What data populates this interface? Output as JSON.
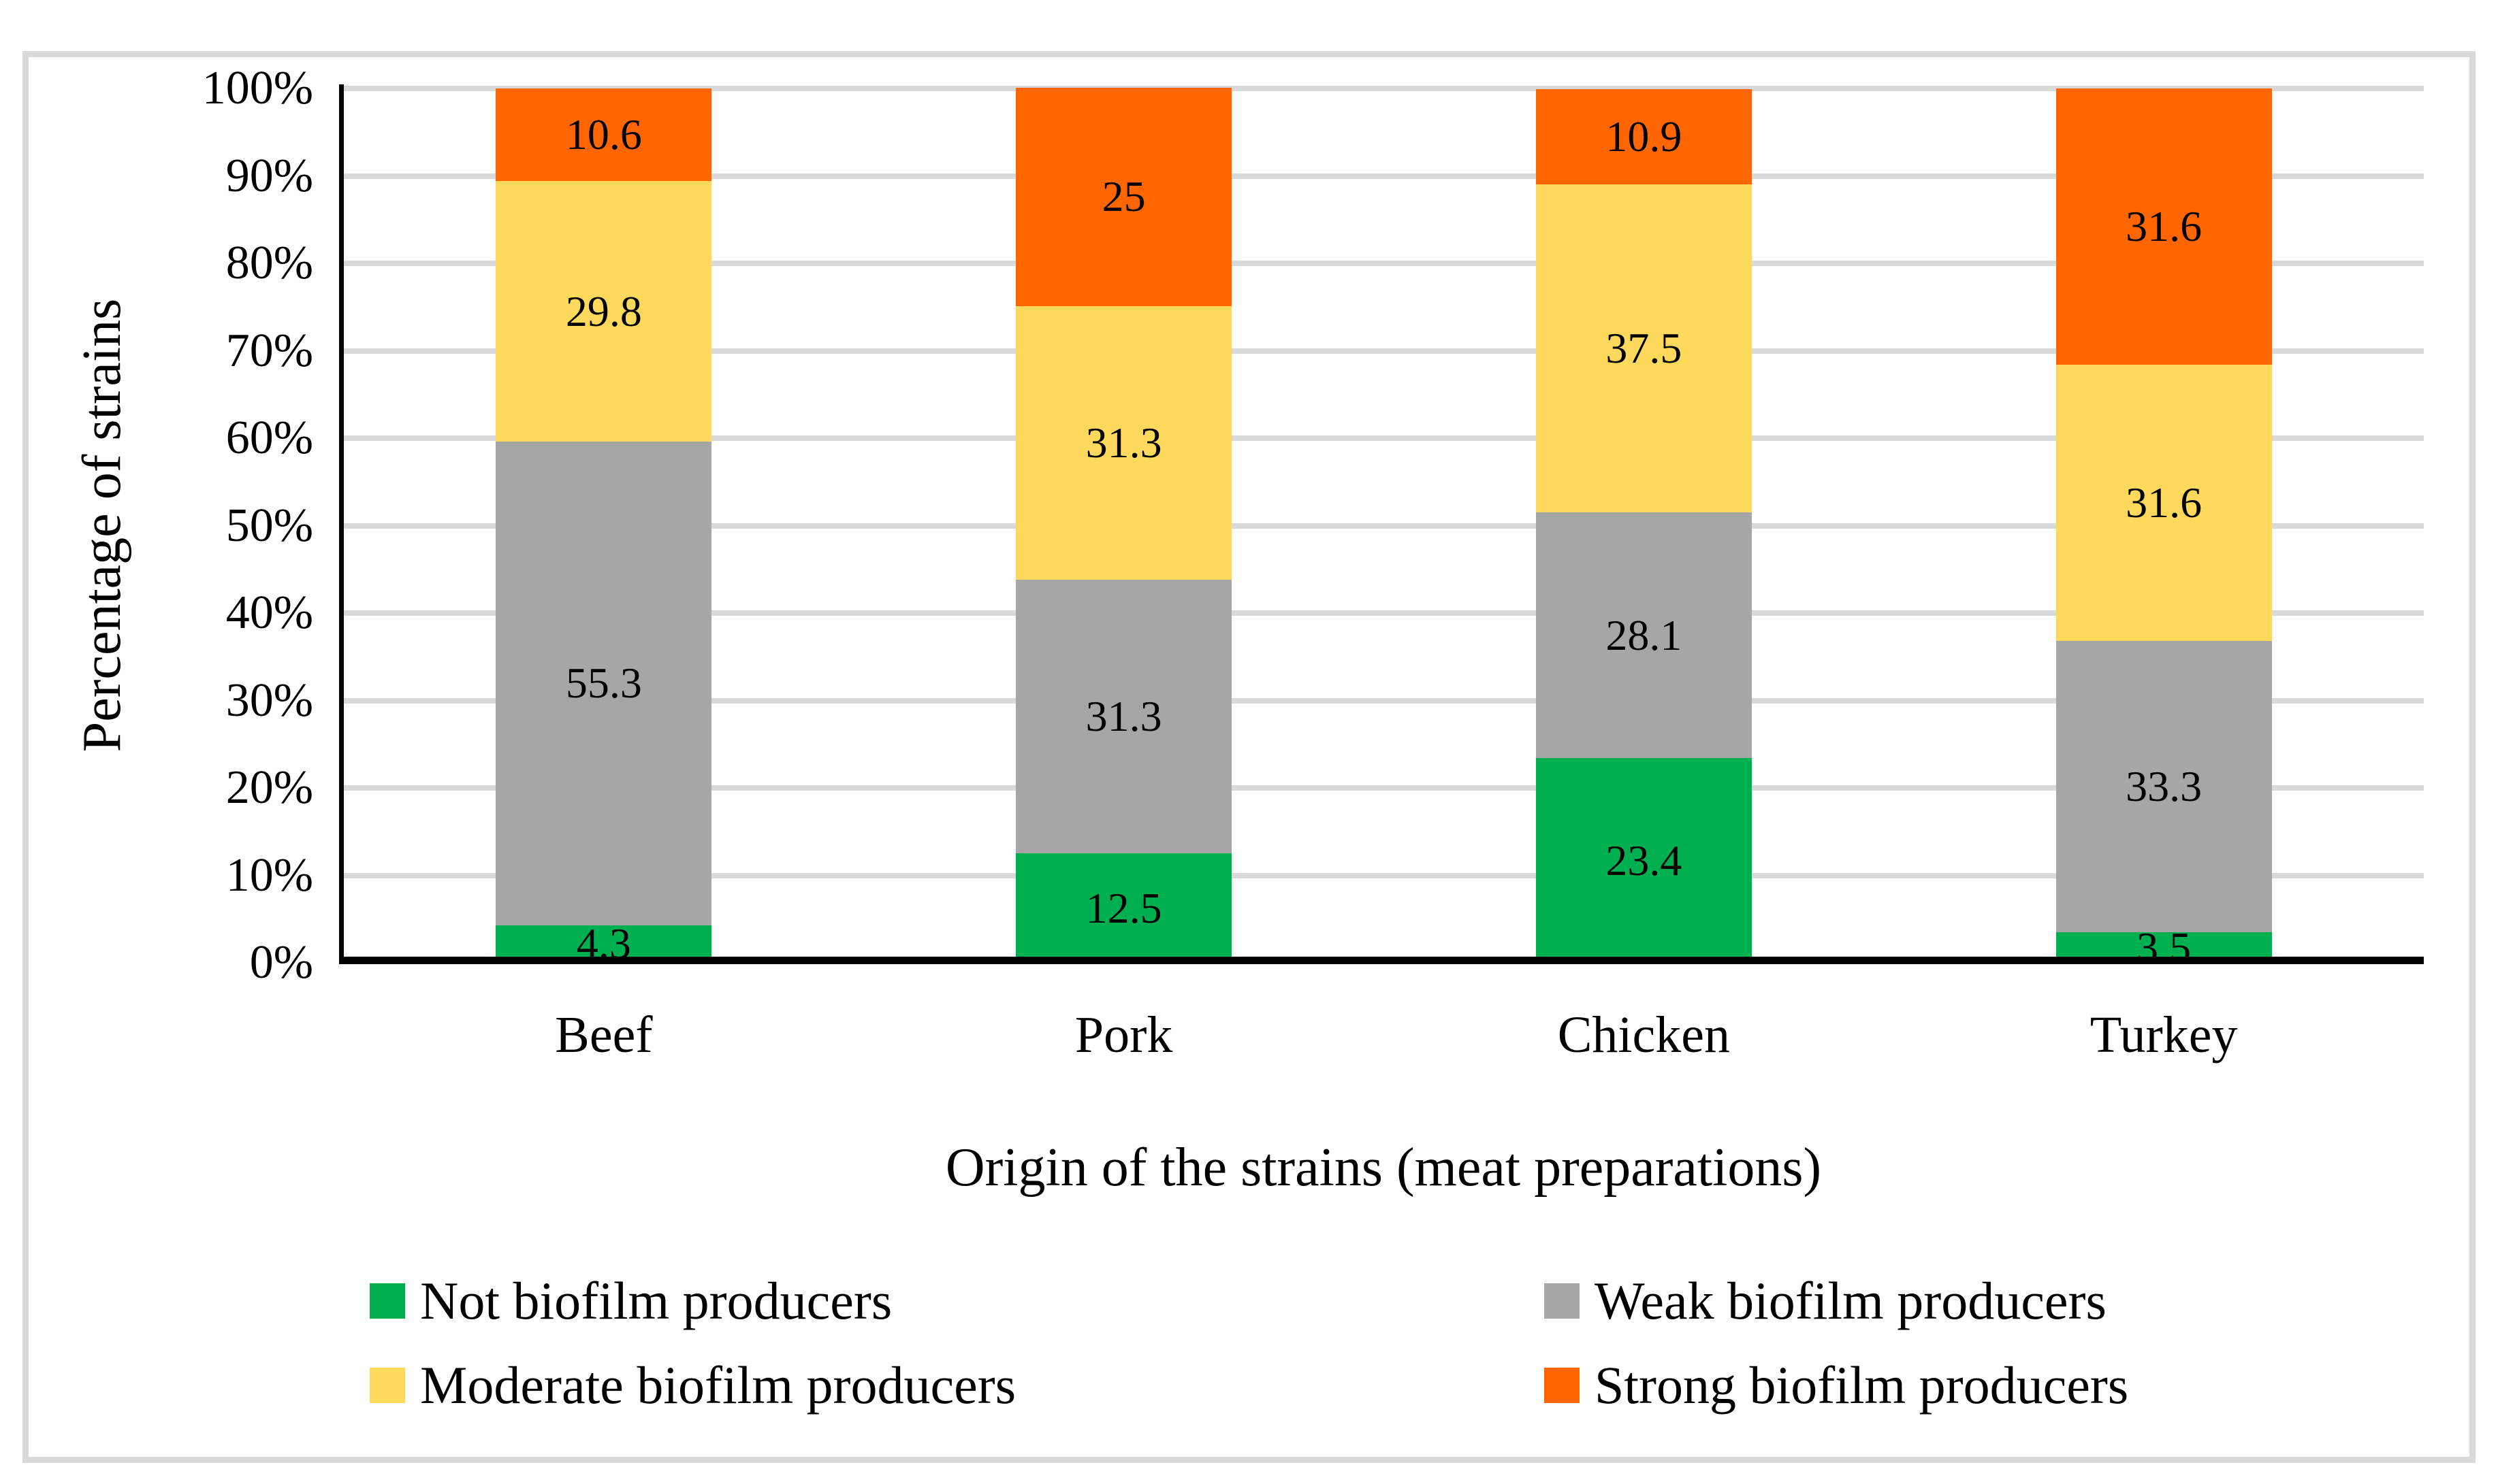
{
  "figure": {
    "y_axis_title": "Percentage of strains",
    "x_axis_title": "Origin of the strains (meat preparations)",
    "y_tick_labels": [
      "100%",
      "90%",
      "80%",
      "70%",
      "60%",
      "50%",
      "40%",
      "30%",
      "20%",
      "10%",
      "0%"
    ],
    "colors": {
      "not_biofilm": "#00B050",
      "weak_biofilm": "#A6A6A6",
      "moderate_biofilm": "#FFD95C",
      "strong_biofilm": "#FF6600",
      "gridline": "#D9D9D9",
      "frame": "#D9D9D9",
      "axis": "#000000"
    },
    "legend": [
      {
        "label": "Not biofilm producers",
        "color": "#00B050"
      },
      {
        "label": "Weak biofilm producers",
        "color": "#A6A6A6"
      },
      {
        "label": "Moderate biofilm producers",
        "color": "#FFD95C"
      },
      {
        "label": "Strong biofilm producers",
        "color": "#FF6600"
      }
    ]
  },
  "chart_data": {
    "type": "bar",
    "stacked": true,
    "categories": [
      "Beef",
      "Pork",
      "Chicken",
      "Turkey"
    ],
    "series": [
      {
        "name": "Not biofilm producers",
        "color": "#00B050",
        "values": [
          4.3,
          12.5,
          23.4,
          3.5
        ]
      },
      {
        "name": "Weak biofilm producers",
        "color": "#A6A6A6",
        "values": [
          55.3,
          31.3,
          28.1,
          33.3
        ]
      },
      {
        "name": "Moderate biofilm producers",
        "color": "#FFD95C",
        "values": [
          29.8,
          31.3,
          37.5,
          31.6
        ]
      },
      {
        "name": "Strong biofilm producers",
        "color": "#FF6600",
        "values": [
          10.6,
          25,
          10.9,
          31.6
        ]
      }
    ],
    "title": "",
    "xlabel": "Origin of the strains (meat preparations)",
    "ylabel": "Percentage of strains",
    "ylim": [
      0,
      100
    ],
    "y_tick_step": 10,
    "grid": true,
    "data_labels": "center",
    "legend_position": "bottom"
  }
}
